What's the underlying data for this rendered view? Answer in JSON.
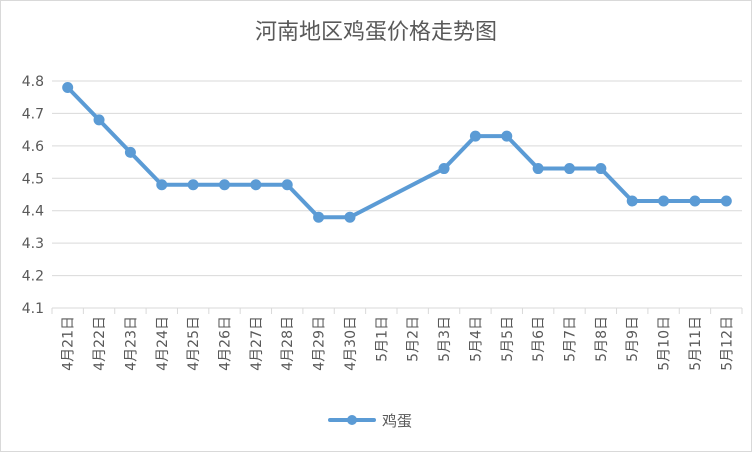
{
  "chart_data": {
    "type": "line",
    "title": "河南地区鸡蛋价格走势图",
    "categories": [
      "4月21日",
      "4月22日",
      "4月23日",
      "4月24日",
      "4月25日",
      "4月26日",
      "4月27日",
      "4月28日",
      "4月29日",
      "4月30日",
      "5月1日",
      "5月2日",
      "5月3日",
      "5月4日",
      "5月5日",
      "5月6日",
      "5月7日",
      "5月8日",
      "5月9日",
      "5月10日",
      "5月11日",
      "5月12日"
    ],
    "series": [
      {
        "name": "鸡蛋",
        "color": "#5b9bd5",
        "values": [
          4.78,
          4.68,
          4.58,
          4.48,
          4.48,
          4.48,
          4.48,
          4.48,
          4.38,
          4.38,
          null,
          null,
          4.53,
          4.63,
          4.63,
          4.53,
          4.53,
          4.53,
          4.43,
          4.43,
          4.43,
          4.43
        ]
      }
    ],
    "yticks": [
      "4.1",
      "4.2",
      "4.3",
      "4.4",
      "4.5",
      "4.6",
      "4.7",
      "4.8"
    ],
    "ylim": [
      4.1,
      4.8
    ],
    "xlabel": "",
    "ylabel": "",
    "grid": true,
    "legend": "bottom",
    "gap_connect": true
  },
  "colors": {
    "line": "#5b9bd5",
    "grid": "#d9d9d9",
    "text": "#595959"
  }
}
